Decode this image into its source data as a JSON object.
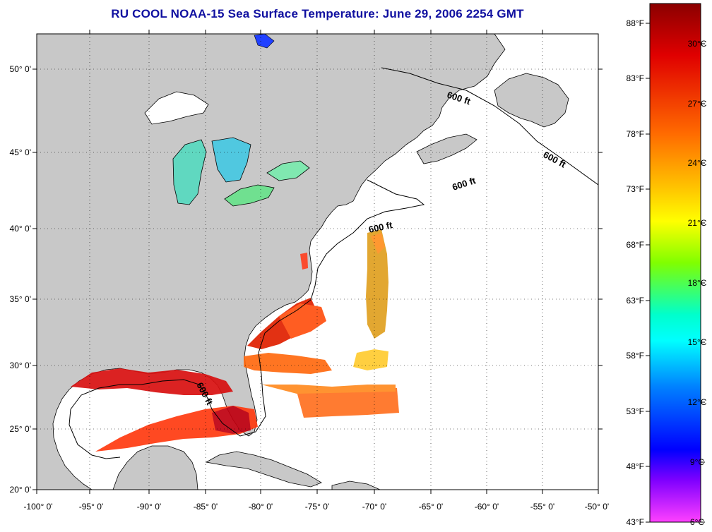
{
  "title": "RU COOL  NOAA-15  Sea Surface Temperature:  June 29, 2006 2254 GMT",
  "map": {
    "lon_ticks": [
      "-100° 0'",
      "-95° 0'",
      "-90° 0'",
      "-85° 0'",
      "-80° 0'",
      "-75° 0'",
      "-70° 0'",
      "-65° 0'",
      "-60° 0'",
      "-55° 0'",
      "-50° 0'"
    ],
    "lat_ticks": [
      "50° 0'",
      "45° 0'",
      "40° 0'",
      "35° 0'",
      "30° 0'",
      "25° 0'",
      "20° 0'"
    ],
    "contour_label": "600 ft",
    "contour_labels": [
      "600 ft",
      "600 ft",
      "600 ft",
      "600 ft",
      "600 ft"
    ],
    "land_color": "#c8c8c8",
    "ocean_color": "#ffffff"
  },
  "colorbar": {
    "fahrenheit": [
      "88°F",
      "83°F",
      "78°F",
      "73°F",
      "68°F",
      "63°F",
      "58°F",
      "53°F",
      "48°F",
      "43°F"
    ],
    "celsius": [
      "30°C",
      "27°C",
      "24°C",
      "21°C",
      "18°C",
      "15°C",
      "12°C",
      "9°C",
      "6°C"
    ],
    "colors": [
      "#8b0000",
      "#ff0000",
      "#ff8000",
      "#ffff00",
      "#80ff00",
      "#00ffff",
      "#0080ff",
      "#0000ff",
      "#8000ff",
      "#ff40ff"
    ]
  }
}
